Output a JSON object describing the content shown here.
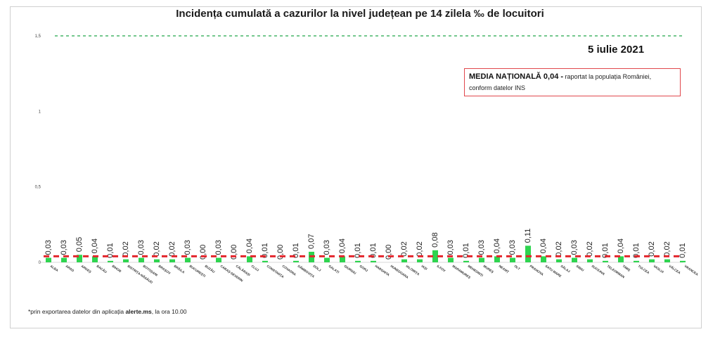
{
  "header": {
    "title": "Incidența cumulată a cazurilor la nivel județean pe 14 zilela ‰ de locuitori",
    "date": "5 iulie 2021"
  },
  "annotation": {
    "strong": "MEDIA NAȚIONALĂ 0,04 -",
    "rest": " raportat la populația României, conform datelor INS"
  },
  "footnote": {
    "before": "*prin exportarea datelor din aplicația ",
    "bold": "alerte.ms",
    "after": ", la ora 10.00"
  },
  "colors": {
    "bar": "#2ed44f",
    "mean_line": "#e3262c",
    "max_line": "#22a84a",
    "border": "#e0474c"
  },
  "chart_data": {
    "type": "bar",
    "title": "Incidența cumulată a cazurilor la nivel județean pe 14 zilela ‰ de locuitori",
    "ylim": [
      0,
      1.5
    ],
    "yticks": [
      "0",
      "0,5",
      "1",
      "1,5"
    ],
    "ytick_values": [
      0,
      0.5,
      1,
      1.5
    ],
    "grid": false,
    "reference_lines": [
      {
        "value": 0.04,
        "style": "dashed",
        "color": "#e3262c"
      },
      {
        "value": 1.5,
        "style": "dashed",
        "color": "#22a84a"
      }
    ],
    "categories": [
      "ALBA",
      "ARAD",
      "ARGEȘ",
      "BACĂU",
      "BIHOR",
      "BISTRIȚA-NĂSĂUD",
      "BOTOȘANI",
      "BRAȘOV",
      "BRĂILA",
      "BUCUREȘTI",
      "BUZĂU",
      "CARAȘ-SEVERIN",
      "CĂLĂRAȘI",
      "CLUJ",
      "CONSTANȚA",
      "COVASNA",
      "DÂMBOVIȚA",
      "DOLJ",
      "GALAȚI",
      "GIURGIU",
      "GORJ",
      "HARGHITA",
      "HUNEDOARA",
      "IALOMIȚA",
      "IAȘI",
      "ILFOV",
      "MARAMUREȘ",
      "MEHEDINȚI",
      "MUREȘ",
      "NEAMȚ",
      "OLT",
      "PRAHOVA",
      "SATU MARE",
      "SĂLAJ",
      "SIBIU",
      "SUCEAVA",
      "TELEORMAN",
      "TIMIȘ",
      "TULCEA",
      "VASLUI",
      "VÂLCEA",
      "VRANCEA"
    ],
    "values": [
      0.03,
      0.03,
      0.05,
      0.04,
      0.01,
      0.02,
      0.03,
      0.02,
      0.02,
      0.03,
      0.0,
      0.03,
      0.0,
      0.04,
      0.01,
      0.0,
      0.01,
      0.07,
      0.03,
      0.04,
      0.01,
      0.01,
      0.0,
      0.02,
      0.02,
      0.08,
      0.03,
      0.01,
      0.03,
      0.04,
      0.03,
      0.11,
      0.04,
      0.02,
      0.03,
      0.02,
      0.01,
      0.04,
      0.01,
      0.02,
      0.02,
      0.01
    ],
    "labels": [
      "0,03",
      "0,03",
      "0,05",
      "0,04",
      "0,01",
      "0,02",
      "0,03",
      "0,02",
      "0,02",
      "0,03",
      "0,00",
      "0,03",
      "0,00",
      "0,04",
      "0,01",
      "0,00",
      "0,01",
      "0,07",
      "0,03",
      "0,04",
      "0,01",
      "0,01",
      "0,00",
      "0,02",
      "0,02",
      "0,08",
      "0,03",
      "0,01",
      "0,03",
      "0,04",
      "0,03",
      "0,11",
      "0,04",
      "0,02",
      "0,03",
      "0,02",
      "0,01",
      "0,04",
      "0,01",
      "0,02",
      "0,02",
      "0,01"
    ]
  }
}
